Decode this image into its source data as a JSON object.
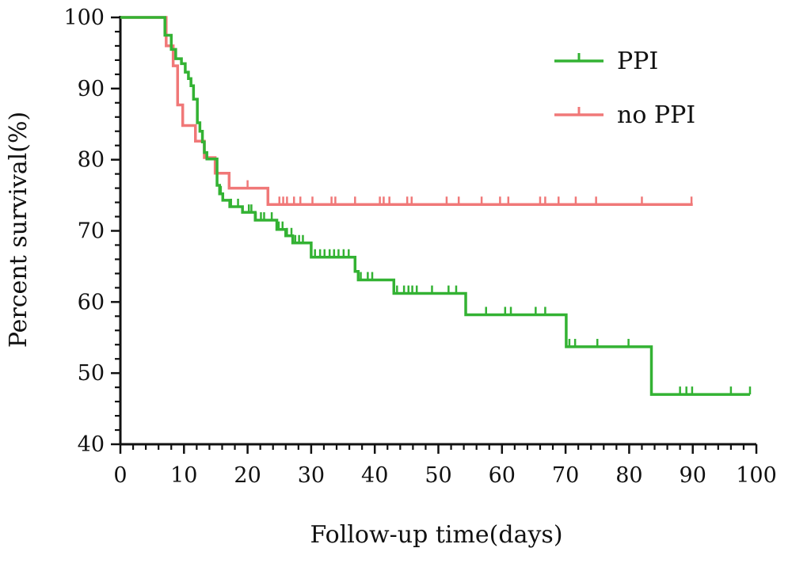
{
  "chart_data": {
    "type": "line",
    "title": "",
    "xlabel": "Follow-up time(days)",
    "ylabel": "Percent survival(%)",
    "xlim": [
      0,
      100
    ],
    "ylim": [
      40,
      100
    ],
    "xticks": [
      0,
      10,
      20,
      30,
      40,
      50,
      60,
      70,
      80,
      90,
      100
    ],
    "yticks": [
      40,
      50,
      60,
      70,
      80,
      90,
      100
    ],
    "x_minor_step": 2,
    "y_minor_step": 2,
    "grid": false,
    "legend_position": "top-right",
    "series": [
      {
        "name": "PPI",
        "color": "#33b233",
        "steps": [
          [
            0,
            100
          ],
          [
            7,
            97.5
          ],
          [
            8,
            95.5
          ],
          [
            8.7,
            94.2
          ],
          [
            9.6,
            93.5
          ],
          [
            10.2,
            92.3
          ],
          [
            10.7,
            91.4
          ],
          [
            11.1,
            90.4
          ],
          [
            11.5,
            88.5
          ],
          [
            12.1,
            85.2
          ],
          [
            12.5,
            84
          ],
          [
            12.9,
            82.5
          ],
          [
            13.2,
            81
          ],
          [
            13.6,
            80.1
          ],
          [
            15.2,
            76.4
          ],
          [
            15.6,
            75.2
          ],
          [
            16.1,
            74.3
          ],
          [
            17.2,
            73.4
          ],
          [
            19.2,
            72.6
          ],
          [
            21.2,
            71.5
          ],
          [
            24.6,
            70.2
          ],
          [
            26,
            69.3
          ],
          [
            27.1,
            68.3
          ],
          [
            30,
            66.3
          ],
          [
            36.9,
            64.3
          ],
          [
            37.4,
            63.1
          ],
          [
            43,
            61.2
          ],
          [
            54.3,
            58.2
          ],
          [
            70.1,
            53.7
          ],
          [
            83.5,
            47
          ]
        ],
        "end_x": 99,
        "censored": [
          15.8,
          17.4,
          18.5,
          20.2,
          20.6,
          21.3,
          22.1,
          22.6,
          23.8,
          24.9,
          25.5,
          26.2,
          26.9,
          27.5,
          28.1,
          28.7,
          30.6,
          31.4,
          32.1,
          32.9,
          33.6,
          34.3,
          35.1,
          35.9,
          37.8,
          38.9,
          39.6,
          43.5,
          44.6,
          45.3,
          45.9,
          46.6,
          49,
          51.6,
          52.8,
          57.5,
          60.5,
          61.4,
          65.3,
          66.8,
          70.6,
          71.5,
          75,
          79.9,
          88,
          89,
          89.9,
          96,
          99
        ]
      },
      {
        "name": "no PPI",
        "color": "#f07878",
        "steps": [
          [
            0,
            100
          ],
          [
            7.2,
            96
          ],
          [
            8.3,
            93.2
          ],
          [
            9,
            87.7
          ],
          [
            9.8,
            84.8
          ],
          [
            11.8,
            82.6
          ],
          [
            13.2,
            80.3
          ],
          [
            14.9,
            78.1
          ],
          [
            17.1,
            76
          ],
          [
            23.2,
            73.7
          ]
        ],
        "end_x": 90,
        "censored": [
          20,
          25,
          25.6,
          26.2,
          27.3,
          28.3,
          30.2,
          33.2,
          33.8,
          36.9,
          40.8,
          41.4,
          42.3,
          45.1,
          45.8,
          51.3,
          53.2,
          56.8,
          59.7,
          61,
          66,
          66.8,
          68.9,
          71.6,
          74.8,
          82,
          89.8
        ]
      }
    ]
  }
}
